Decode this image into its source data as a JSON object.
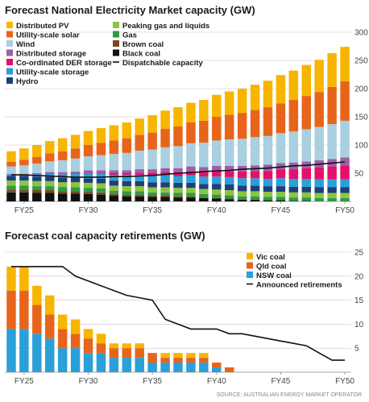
{
  "colors": {
    "distributed_pv": "#f7b500",
    "utility_solar": "#e8641b",
    "wind": "#a9cfe0",
    "distributed_storage": "#9d5fa8",
    "coordinated_der": "#e5106a",
    "utility_storage": "#2a9fd8",
    "hydro": "#1f3f78",
    "peaking_gas": "#8bc53f",
    "gas": "#2e9a44",
    "brown_coal": "#7a4a1e",
    "black_coal": "#111111",
    "vic_coal": "#f7b500",
    "qld_coal": "#e8641b",
    "nsw_coal": "#2a9fd8",
    "line": "#111111",
    "grid": "#c8c8c8"
  },
  "source": "SOURCE: AUSTRALIAN ENERGY MARKET OPERATOR",
  "chart_data": [
    {
      "type": "bar",
      "stacked": true,
      "title": "Forecast National Electricity Market capacity (GW)",
      "categories": [
        "FY24",
        "FY25",
        "FY26",
        "FY27",
        "FY28",
        "FY29",
        "FY30",
        "FY31",
        "FY32",
        "FY33",
        "FY34",
        "FY35",
        "FY36",
        "FY37",
        "FY38",
        "FY39",
        "FY40",
        "FY41",
        "FY42",
        "FY43",
        "FY44",
        "FY45",
        "FY46",
        "FY47",
        "FY48",
        "FY49",
        "FY50"
      ],
      "xticks": [
        "FY25",
        "FY30",
        "FY35",
        "FY40",
        "FY45",
        "FY50"
      ],
      "ylim": [
        0,
        300
      ],
      "yticks": [
        50,
        100,
        150,
        200,
        250,
        300
      ],
      "grid": true,
      "legend_position": "top-left",
      "series": [
        {
          "name": "Black coal",
          "key": "black_coal",
          "values": [
            16,
            16,
            15,
            15,
            14,
            14,
            13,
            12,
            10,
            9,
            9,
            8,
            8,
            7,
            7,
            6,
            5,
            4,
            3,
            3,
            2,
            2,
            1,
            1,
            0,
            0,
            0
          ]
        },
        {
          "name": "Brown coal",
          "key": "brown_coal",
          "values": [
            5,
            5,
            5,
            5,
            4,
            4,
            4,
            4,
            3,
            3,
            3,
            2,
            2,
            2,
            2,
            1,
            1,
            1,
            0,
            0,
            0,
            0,
            0,
            0,
            0,
            0,
            0
          ]
        },
        {
          "name": "Gas",
          "key": "gas",
          "values": [
            7,
            7,
            7,
            7,
            7,
            7,
            7,
            7,
            6,
            6,
            6,
            6,
            6,
            6,
            6,
            6,
            6,
            6,
            6,
            6,
            6,
            6,
            6,
            6,
            6,
            6,
            6
          ]
        },
        {
          "name": "Peaking gas and liquids",
          "key": "peaking_gas",
          "values": [
            9,
            9,
            9,
            9,
            9,
            9,
            9,
            9,
            9,
            9,
            9,
            9,
            9,
            9,
            9,
            9,
            9,
            9,
            9,
            9,
            9,
            9,
            9,
            9,
            9,
            9,
            9
          ]
        },
        {
          "name": "Hydro",
          "key": "hydro",
          "values": [
            8,
            8,
            8,
            8,
            8,
            8,
            8,
            8,
            9,
            9,
            9,
            9,
            9,
            9,
            9,
            9,
            10,
            10,
            10,
            10,
            10,
            10,
            10,
            10,
            10,
            10,
            10
          ]
        },
        {
          "name": "Utility-scale storage",
          "key": "utility_storage",
          "values": [
            3,
            3,
            4,
            5,
            6,
            7,
            8,
            9,
            10,
            11,
            11,
            12,
            12,
            12,
            13,
            13,
            13,
            13,
            13,
            13,
            13,
            14,
            14,
            14,
            14,
            14,
            14
          ]
        },
        {
          "name": "Co-ordinated DER storage",
          "key": "coordinated_der",
          "values": [
            0,
            0,
            0,
            1,
            1,
            1,
            2,
            2,
            3,
            3,
            4,
            5,
            6,
            7,
            8,
            9,
            10,
            11,
            12,
            13,
            14,
            16,
            17,
            19,
            21,
            23,
            25
          ]
        },
        {
          "name": "Distributed storage",
          "key": "distributed_storage",
          "values": [
            1,
            1,
            2,
            2,
            3,
            3,
            4,
            4,
            5,
            5,
            6,
            6,
            7,
            7,
            8,
            8,
            9,
            9,
            10,
            10,
            11,
            11,
            12,
            12,
            13,
            13,
            14
          ]
        },
        {
          "name": "Wind",
          "key": "wind",
          "values": [
            13,
            15,
            17,
            19,
            21,
            23,
            25,
            27,
            29,
            31,
            33,
            35,
            37,
            39,
            41,
            43,
            45,
            47,
            48,
            50,
            51,
            53,
            55,
            57,
            59,
            62,
            65
          ]
        },
        {
          "name": "Utility-scale solar",
          "key": "utility_solar",
          "values": [
            8,
            10,
            12,
            14,
            16,
            18,
            20,
            22,
            24,
            26,
            28,
            30,
            33,
            35,
            37,
            39,
            42,
            44,
            46,
            48,
            51,
            53,
            56,
            59,
            62,
            66,
            70
          ]
        },
        {
          "name": "Distributed PV",
          "key": "distributed_pv",
          "values": [
            19,
            20,
            21,
            22,
            23,
            24,
            25,
            26,
            27,
            28,
            29,
            31,
            32,
            34,
            35,
            37,
            39,
            41,
            43,
            45,
            47,
            50,
            52,
            55,
            57,
            60,
            61
          ]
        }
      ],
      "line": {
        "name": "Dispatchable capacity",
        "values": [
          47,
          47,
          46,
          45,
          44,
          43,
          43,
          43,
          44,
          44,
          45,
          46,
          48,
          50,
          51,
          53,
          54,
          55,
          57,
          58,
          59,
          61,
          63,
          64,
          66,
          68,
          70
        ]
      },
      "legend": [
        [
          "Distributed PV",
          "distributed_pv"
        ],
        [
          "Utility-scale solar",
          "utility_solar"
        ],
        [
          "Wind",
          "wind"
        ],
        [
          "Distributed storage",
          "distributed_storage"
        ],
        [
          "Co-ordinated DER storage",
          "coordinated_der"
        ],
        [
          "Utility-scale storage",
          "utility_storage"
        ],
        [
          "Hydro",
          "hydro"
        ],
        [
          "Peaking gas and liquids",
          "peaking_gas"
        ],
        [
          "Gas",
          "gas"
        ],
        [
          "Brown coal",
          "brown_coal"
        ],
        [
          "Black coal",
          "black_coal"
        ],
        [
          "Dispatchable capacity",
          "line"
        ]
      ]
    },
    {
      "type": "bar",
      "stacked": true,
      "title": "Forecast coal capacity retirements (GW)",
      "categories": [
        "FY24",
        "FY25",
        "FY26",
        "FY27",
        "FY28",
        "FY29",
        "FY30",
        "FY31",
        "FY32",
        "FY33",
        "FY34",
        "FY35",
        "FY36",
        "FY37",
        "FY38",
        "FY39",
        "FY40",
        "FY41",
        "FY42",
        "FY43",
        "FY44",
        "FY45",
        "FY46",
        "FY47",
        "FY48",
        "FY49",
        "FY50"
      ],
      "xticks": [
        "FY25",
        "FY30",
        "FY35",
        "FY40",
        "FY45",
        "FY50"
      ],
      "ylim": [
        0,
        25
      ],
      "yticks": [
        5,
        10,
        15,
        20,
        25
      ],
      "grid": true,
      "legend_position": "top-right",
      "series": [
        {
          "name": "NSW coal",
          "key": "nsw_coal",
          "values": [
            9,
            9,
            8,
            7,
            5,
            5,
            4,
            4,
            3,
            3,
            3,
            2,
            2,
            2,
            2,
            2,
            1,
            0,
            0,
            0,
            0,
            0,
            0,
            0,
            0,
            0,
            0
          ]
        },
        {
          "name": "Qld coal",
          "key": "qld_coal",
          "values": [
            8,
            8,
            6,
            5,
            4,
            3,
            3,
            2,
            2,
            2,
            2,
            2,
            1,
            1,
            1,
            1,
            1,
            1,
            0,
            0,
            0,
            0,
            0,
            0,
            0,
            0,
            0
          ]
        },
        {
          "name": "Vic coal",
          "key": "vic_coal",
          "values": [
            5,
            5,
            4,
            4,
            3,
            3,
            2,
            2,
            1,
            1,
            1,
            0,
            1,
            1,
            1,
            1,
            0,
            0,
            0,
            0,
            0,
            0,
            0,
            0,
            0,
            0,
            0
          ]
        }
      ],
      "line": {
        "name": "Announced retirements",
        "values": [
          22,
          22,
          22,
          22,
          22,
          20,
          19,
          18,
          17,
          16,
          15.5,
          15,
          11,
          10,
          9,
          9,
          9,
          8,
          8,
          7.5,
          7,
          6.5,
          6,
          5.5,
          4,
          2.5,
          2.5
        ]
      },
      "legend": [
        [
          "Vic coal",
          "vic_coal"
        ],
        [
          "Qld coal",
          "qld_coal"
        ],
        [
          "NSW coal",
          "nsw_coal"
        ],
        [
          "Announced retirements",
          "line"
        ]
      ]
    }
  ]
}
